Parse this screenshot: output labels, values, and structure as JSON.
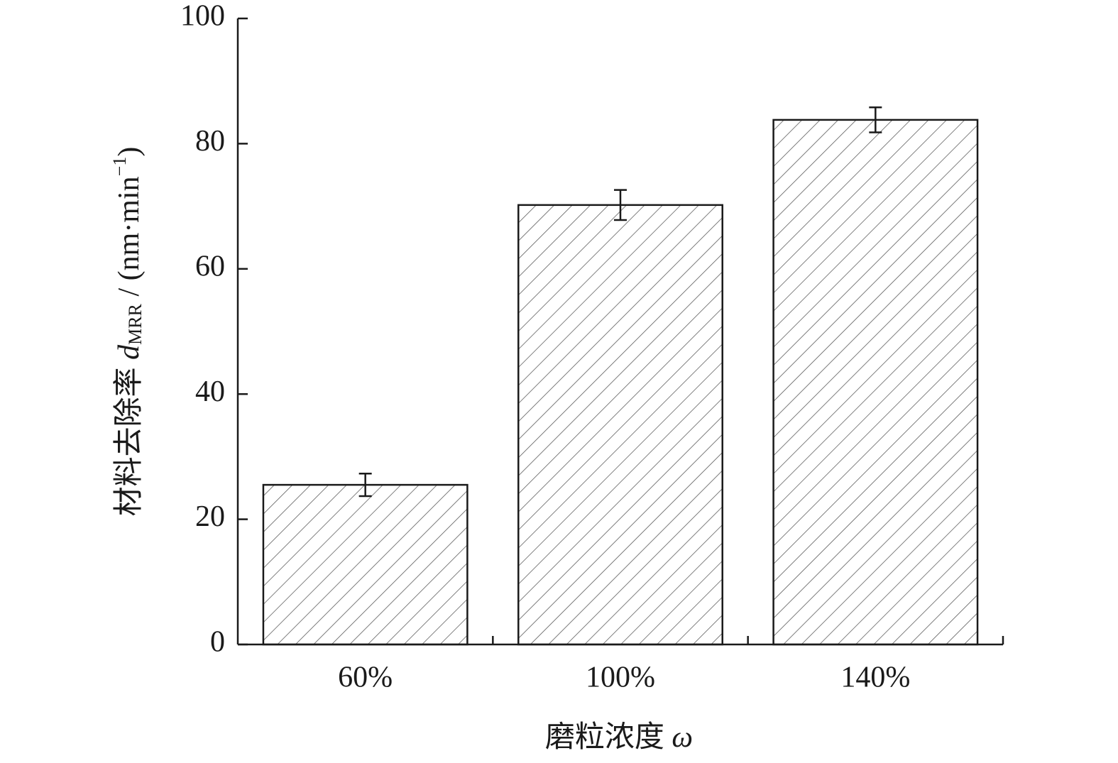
{
  "chart_data": {
    "type": "bar",
    "categories": [
      "60%",
      "100%",
      "140%"
    ],
    "values": [
      25.5,
      70.2,
      83.8
    ],
    "errors": [
      1.8,
      2.4,
      2.0
    ],
    "color": "#555555",
    "ylim": [
      0,
      100
    ],
    "yticks": [
      0,
      20,
      40,
      60,
      80,
      100
    ],
    "xlabel": [
      "磨粒浓度 ",
      "ω"
    ],
    "ylabel": [
      "材料去除率 ",
      "d",
      "MRR",
      " / (nm·min",
      "−1",
      ")"
    ],
    "hatch": "///"
  }
}
